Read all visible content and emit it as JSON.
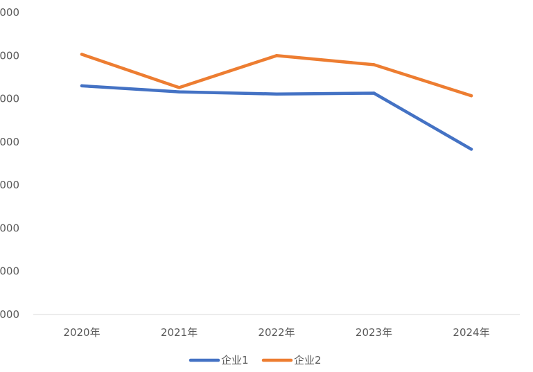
{
  "chart_data": {
    "type": "line",
    "categories": [
      "2020年",
      "2021年",
      "2022年",
      "2023年",
      "2024年"
    ],
    "y_tick_labels": [
      "000",
      "000",
      "000",
      "000",
      "000",
      "000",
      "000",
      "000"
    ],
    "ylim": [
      0,
      7
    ],
    "grid": false,
    "legend_position": "bottom",
    "series": [
      {
        "name": "企业1",
        "color": "#4472C4",
        "values": [
          5.3,
          5.16,
          5.11,
          5.13,
          3.83
        ]
      },
      {
        "name": "企业2",
        "color": "#ED7D31",
        "values": [
          6.03,
          5.26,
          6.0,
          5.79,
          5.07
        ]
      }
    ]
  }
}
